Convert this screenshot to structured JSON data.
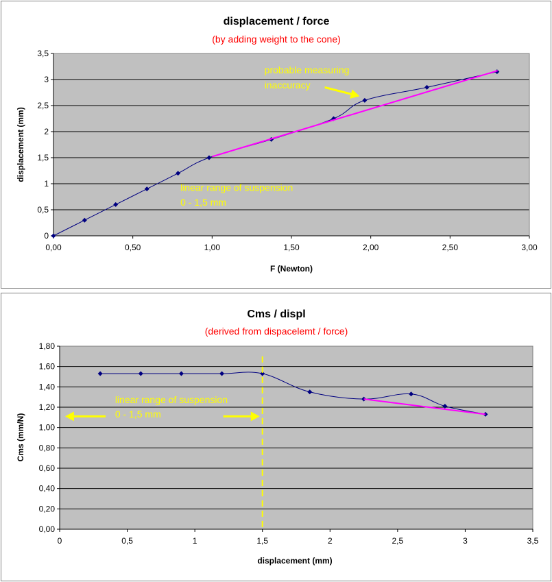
{
  "colors": {
    "plot_bg": "#c0c0c0",
    "series": "#000080",
    "trend": "#ff00ff",
    "subtitle": "#ff0000",
    "annotation": "#ffff00"
  },
  "chart_data": [
    {
      "type": "line",
      "title": "displacement / force",
      "subtitle": "(by adding weight to the cone)",
      "xlabel": "F (Newton)",
      "ylabel": "displacement (mm)",
      "xlim": [
        0,
        3
      ],
      "ylim": [
        0,
        3.5
      ],
      "xticks": [
        0,
        0.5,
        1,
        1.5,
        2,
        2.5,
        3
      ],
      "yticks": [
        0,
        0.5,
        1,
        1.5,
        2,
        2.5,
        3,
        3.5
      ],
      "xtick_labels": [
        "0,00",
        "0,50",
        "1,00",
        "1,50",
        "2,00",
        "2,50",
        "3,00"
      ],
      "ytick_labels": [
        "0",
        "0,5",
        "1",
        "1,5",
        "2",
        "2,5",
        "3",
        "3,5"
      ],
      "grid": "horizontal",
      "series": [
        {
          "x": [
            0,
            0.196,
            0.392,
            0.589,
            0.785,
            0.981,
            1.373,
            1.766,
            1.962,
            2.354,
            2.796
          ],
          "y": [
            0,
            0.3,
            0.6,
            0.9,
            1.2,
            1.5,
            1.85,
            2.25,
            2.6,
            2.85,
            3.15
          ]
        }
      ],
      "trendline": {
        "x": [
          1.0,
          2.8
        ],
        "y": [
          1.52,
          3.17
        ]
      },
      "annotations": [
        {
          "text": "probable measuring",
          "x": 1.33,
          "y": 3.12
        },
        {
          "text": "inaccuracy",
          "x": 1.33,
          "y": 2.83
        },
        {
          "text": "linear range of suspension",
          "x": 0.8,
          "y": 0.86
        },
        {
          "text": "0 - 1,5 mm",
          "x": 0.8,
          "y": 0.58
        }
      ],
      "arrows": [
        {
          "from": [
            1.71,
            2.85
          ],
          "to": [
            1.93,
            2.68
          ]
        }
      ]
    },
    {
      "type": "line",
      "title": "Cms / displ",
      "subtitle": "(derived from dispacelemt / force)",
      "xlabel": "displacement (mm)",
      "ylabel": "Cms (mm/N)",
      "xlim": [
        0,
        3.5
      ],
      "ylim": [
        0,
        1.8
      ],
      "xticks": [
        0,
        0.5,
        1,
        1.5,
        2,
        2.5,
        3,
        3.5
      ],
      "yticks": [
        0,
        0.2,
        0.4,
        0.6,
        0.8,
        1.0,
        1.2,
        1.4,
        1.6,
        1.8
      ],
      "xtick_labels": [
        "0",
        "0,5",
        "1",
        "1,5",
        "2",
        "2,5",
        "3",
        "3,5"
      ],
      "ytick_labels": [
        "0,00",
        "0,20",
        "0,40",
        "0,60",
        "0,80",
        "1,00",
        "1,20",
        "1,40",
        "1,60",
        "1,80"
      ],
      "grid": "horizontal",
      "series": [
        {
          "x": [
            0.3,
            0.6,
            0.9,
            1.2,
            1.5,
            1.85,
            2.25,
            2.6,
            2.85,
            3.15
          ],
          "y": [
            1.53,
            1.53,
            1.53,
            1.53,
            1.53,
            1.35,
            1.28,
            1.33,
            1.21,
            1.13
          ]
        }
      ],
      "trendline": {
        "x": [
          2.25,
          3.15
        ],
        "y": [
          1.28,
          1.13
        ]
      },
      "vline": {
        "x": 1.5
      },
      "annotations": [
        {
          "text": "linear range of suspension",
          "x": 0.41,
          "y": 1.24
        },
        {
          "text": "0 - 1,5 mm",
          "x": 0.41,
          "y": 1.1
        }
      ],
      "arrows": [
        {
          "from": [
            0.34,
            1.11
          ],
          "to": [
            0.04,
            1.11
          ]
        },
        {
          "from": [
            1.21,
            1.11
          ],
          "to": [
            1.48,
            1.11
          ]
        }
      ]
    }
  ]
}
